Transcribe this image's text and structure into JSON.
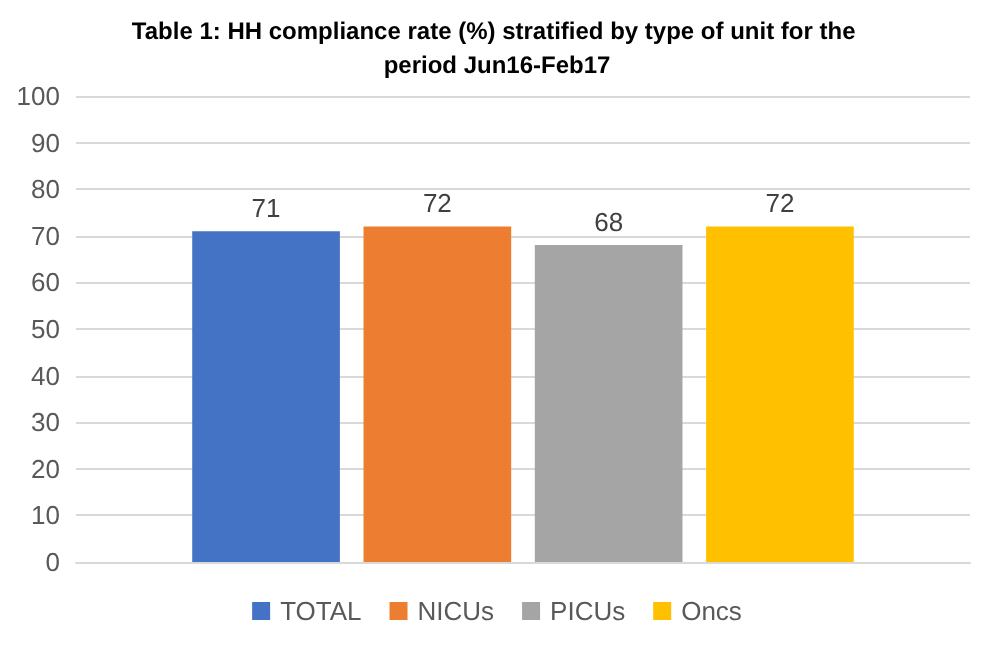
{
  "chart_data": {
    "type": "bar",
    "title": "Table 1: HH compliance rate (%) stratified by type of unit for the period Jun16-Feb17",
    "categories": [
      null
    ],
    "series": [
      {
        "name": "TOTAL",
        "color": "#4472c4",
        "values": [
          71
        ]
      },
      {
        "name": "NICUs",
        "color": "#ed7d31",
        "values": [
          72
        ]
      },
      {
        "name": "PICUs",
        "color": "#a5a5a5",
        "values": [
          68
        ]
      },
      {
        "name": "Oncs",
        "color": "#ffc000",
        "values": [
          72
        ]
      }
    ],
    "ylim": [
      0,
      100
    ],
    "yticks": [
      0,
      10,
      20,
      30,
      40,
      50,
      60,
      70,
      80,
      90,
      100
    ],
    "grid": "y",
    "data_labels": true,
    "legend": "bottom"
  }
}
